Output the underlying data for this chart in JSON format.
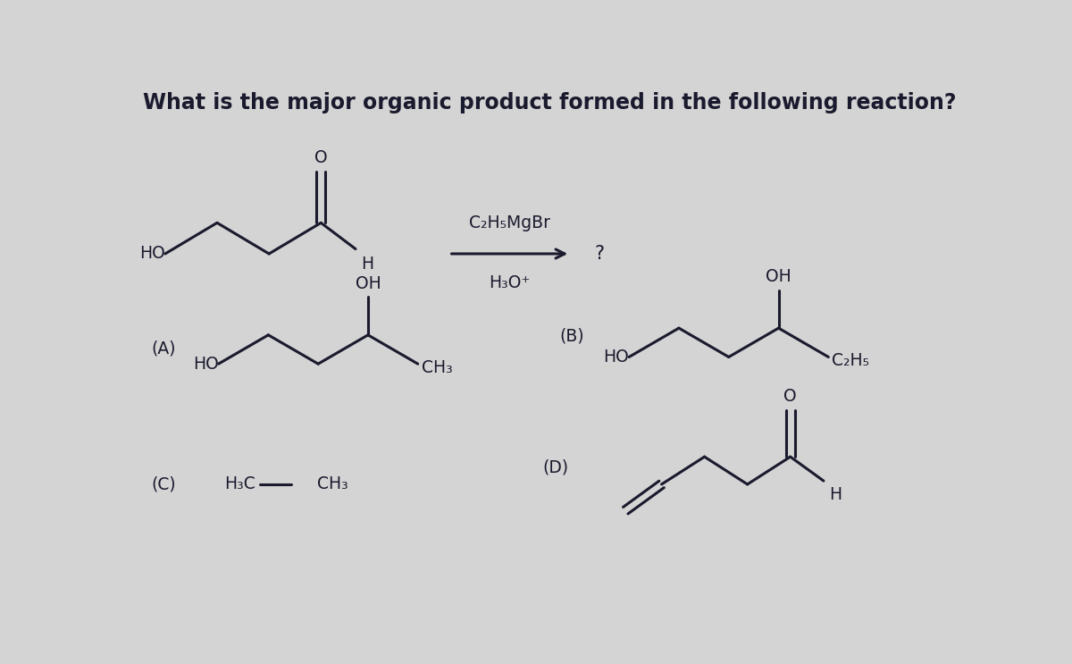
{
  "title": "What is the major organic product formed in the following reaction?",
  "title_fontsize": 17,
  "background_color": "#d4d4d4",
  "text_color": "#1a1a2e",
  "reagent_line1": "C₂H₅MgBr",
  "reagent_line2": "H₃O⁺",
  "question_mark": "?",
  "label_A": "(A)",
  "label_B": "(B)",
  "label_C": "(C)",
  "label_D": "(D)"
}
